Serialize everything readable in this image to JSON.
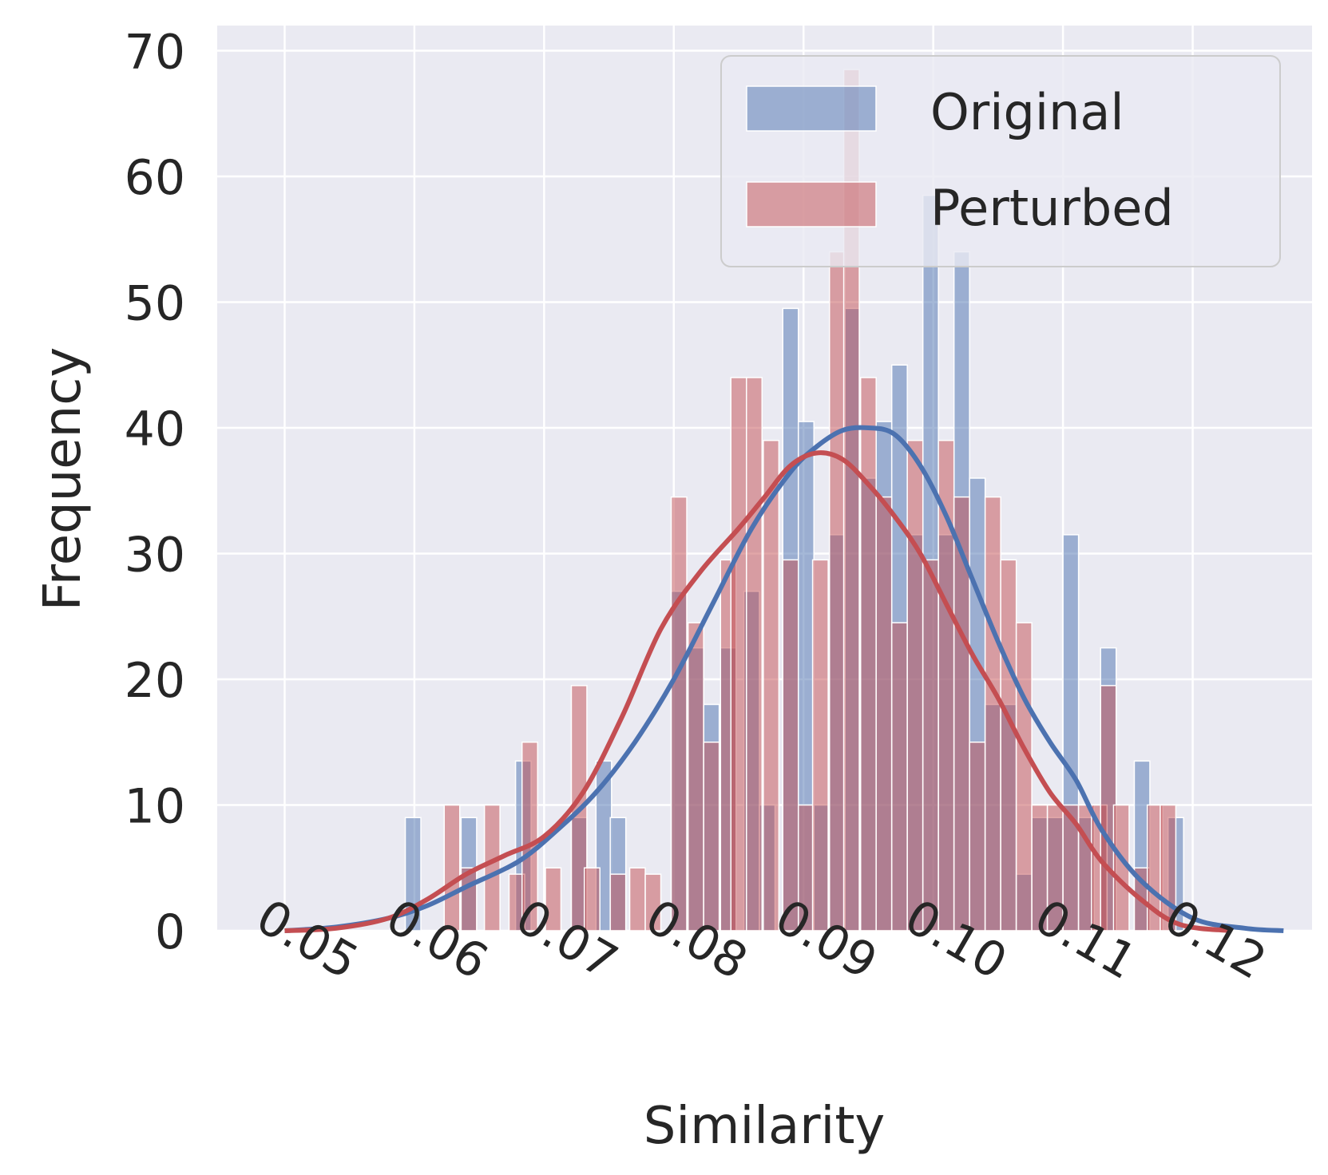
{
  "chart_data": {
    "type": "bar",
    "xlabel": "Similarity",
    "ylabel": "Frequency",
    "xlim": [
      0.0448,
      0.1292
    ],
    "ylim": [
      0,
      72
    ],
    "xticks": [
      0.05,
      0.06,
      0.07,
      0.08,
      0.09,
      0.1,
      0.11,
      0.12
    ],
    "xtick_labels": [
      "0.05",
      "0.06",
      "0.07",
      "0.08",
      "0.09",
      "0.10",
      "0.11",
      "0.12"
    ],
    "yticks": [
      0,
      10,
      20,
      30,
      40,
      50,
      60,
      70
    ],
    "ytick_labels": [
      "0",
      "10",
      "20",
      "30",
      "40",
      "50",
      "60",
      "70"
    ],
    "grid": true,
    "legend_position": "top-right",
    "bin_width": 0.0012,
    "series": [
      {
        "name": "Original",
        "color": "#4c72b0",
        "bars": [
          [
            0.0599,
            9
          ],
          [
            0.0642,
            9
          ],
          [
            0.0684,
            13.5
          ],
          [
            0.0727,
            9
          ],
          [
            0.0746,
            13.5
          ],
          [
            0.0757,
            9
          ],
          [
            0.0804,
            27
          ],
          [
            0.0817,
            22.5
          ],
          [
            0.0829,
            18
          ],
          [
            0.0842,
            22.5
          ],
          [
            0.086,
            27
          ],
          [
            0.0872,
            10
          ],
          [
            0.089,
            49.5
          ],
          [
            0.0902,
            40.5
          ],
          [
            0.0913,
            10
          ],
          [
            0.0926,
            31.5
          ],
          [
            0.0937,
            49.5
          ],
          [
            0.095,
            36
          ],
          [
            0.0962,
            40.5
          ],
          [
            0.0974,
            45
          ],
          [
            0.0986,
            31.5
          ],
          [
            0.0998,
            58.5
          ],
          [
            0.101,
            31.5
          ],
          [
            0.1022,
            54
          ],
          [
            0.1034,
            36
          ],
          [
            0.1046,
            18
          ],
          [
            0.1058,
            18
          ],
          [
            0.107,
            4.5
          ],
          [
            0.1082,
            9
          ],
          [
            0.1094,
            9
          ],
          [
            0.1106,
            31.5
          ],
          [
            0.1118,
            9
          ],
          [
            0.1135,
            22.5
          ],
          [
            0.1161,
            13.5
          ],
          [
            0.1187,
            9
          ]
        ]
      },
      {
        "name": "Perturbed",
        "color": "#c44e52",
        "bars": [
          [
            0.0629,
            10
          ],
          [
            0.0642,
            5
          ],
          [
            0.066,
            10
          ],
          [
            0.0679,
            4.5
          ],
          [
            0.0689,
            15
          ],
          [
            0.0707,
            5
          ],
          [
            0.0727,
            19.5
          ],
          [
            0.0737,
            5
          ],
          [
            0.0757,
            4.5
          ],
          [
            0.0772,
            5
          ],
          [
            0.0784,
            4.5
          ],
          [
            0.0804,
            34.5
          ],
          [
            0.0817,
            24.5
          ],
          [
            0.0829,
            15
          ],
          [
            0.0842,
            29.5
          ],
          [
            0.085,
            44
          ],
          [
            0.0862,
            44
          ],
          [
            0.0875,
            39
          ],
          [
            0.089,
            29.5
          ],
          [
            0.0902,
            10
          ],
          [
            0.0913,
            29.5
          ],
          [
            0.0926,
            54
          ],
          [
            0.0937,
            68.5
          ],
          [
            0.095,
            44
          ],
          [
            0.0962,
            34.5
          ],
          [
            0.0974,
            24.5
          ],
          [
            0.0986,
            39
          ],
          [
            0.0998,
            29.5
          ],
          [
            0.101,
            39
          ],
          [
            0.1022,
            34.5
          ],
          [
            0.1034,
            15
          ],
          [
            0.1046,
            34.5
          ],
          [
            0.1058,
            29.5
          ],
          [
            0.107,
            24.5
          ],
          [
            0.1082,
            10
          ],
          [
            0.1094,
            10
          ],
          [
            0.1106,
            10
          ],
          [
            0.1118,
            10
          ],
          [
            0.1128,
            10
          ],
          [
            0.1135,
            19.5
          ],
          [
            0.1145,
            10
          ],
          [
            0.1161,
            5
          ],
          [
            0.1171,
            10
          ],
          [
            0.1181,
            10
          ]
        ]
      }
    ],
    "kde": [
      {
        "name": "Original",
        "color": "#4c72b0",
        "points": [
          [
            0.05,
            0
          ],
          [
            0.054,
            0.3
          ],
          [
            0.058,
            1
          ],
          [
            0.061,
            2
          ],
          [
            0.064,
            3.5
          ],
          [
            0.068,
            5.5
          ],
          [
            0.071,
            8
          ],
          [
            0.074,
            11
          ],
          [
            0.077,
            15
          ],
          [
            0.08,
            20
          ],
          [
            0.083,
            26
          ],
          [
            0.086,
            32
          ],
          [
            0.089,
            36.5
          ],
          [
            0.091,
            38.5
          ],
          [
            0.093,
            39.8
          ],
          [
            0.095,
            40
          ],
          [
            0.097,
            39.5
          ],
          [
            0.099,
            37
          ],
          [
            0.101,
            33
          ],
          [
            0.103,
            28
          ],
          [
            0.105,
            23
          ],
          [
            0.107,
            18.5
          ],
          [
            0.109,
            15
          ],
          [
            0.111,
            12
          ],
          [
            0.113,
            8
          ],
          [
            0.116,
            4
          ],
          [
            0.12,
            1
          ],
          [
            0.124,
            0.2
          ],
          [
            0.127,
            0
          ]
        ]
      },
      {
        "name": "Perturbed",
        "color": "#c44e52",
        "points": [
          [
            0.05,
            0
          ],
          [
            0.054,
            0.2
          ],
          [
            0.058,
            1
          ],
          [
            0.061,
            2.5
          ],
          [
            0.064,
            4.5
          ],
          [
            0.067,
            6
          ],
          [
            0.07,
            7.5
          ],
          [
            0.073,
            11
          ],
          [
            0.076,
            17
          ],
          [
            0.079,
            24
          ],
          [
            0.082,
            28.5
          ],
          [
            0.085,
            32
          ],
          [
            0.087,
            34.5
          ],
          [
            0.089,
            37
          ],
          [
            0.091,
            38
          ],
          [
            0.093,
            37.5
          ],
          [
            0.095,
            35.5
          ],
          [
            0.097,
            33
          ],
          [
            0.099,
            30
          ],
          [
            0.101,
            26
          ],
          [
            0.103,
            22
          ],
          [
            0.105,
            18.5
          ],
          [
            0.107,
            14.5
          ],
          [
            0.109,
            11
          ],
          [
            0.111,
            8.5
          ],
          [
            0.113,
            5.5
          ],
          [
            0.116,
            2.5
          ],
          [
            0.119,
            0.5
          ],
          [
            0.123,
            0
          ]
        ]
      }
    ]
  }
}
